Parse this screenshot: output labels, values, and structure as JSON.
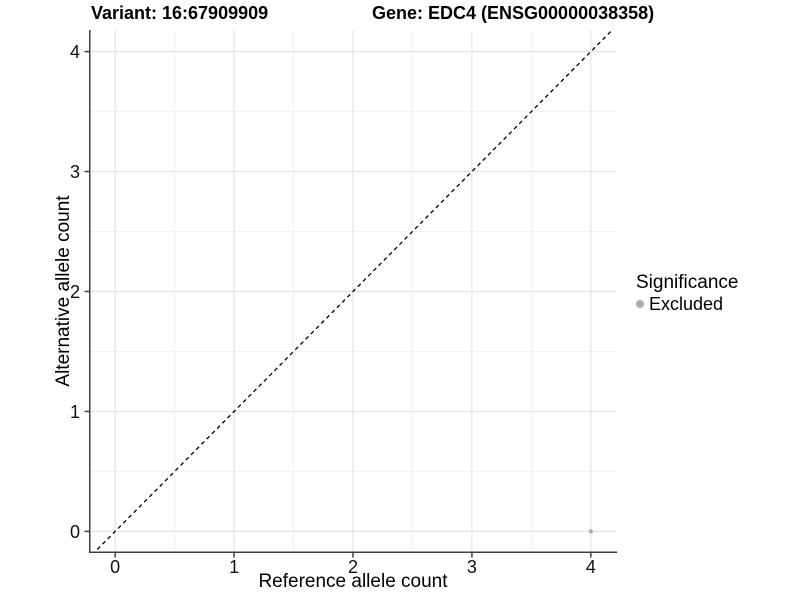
{
  "titles": {
    "variant": "Variant: 16:67909909",
    "gene": "Gene: EDC4 (ENSG00000038358)"
  },
  "chart_data": {
    "type": "scatter",
    "titles": [
      "Variant: 16:67909909",
      "Gene: EDC4 (ENSG00000038358)"
    ],
    "xlabel": "Reference allele count",
    "ylabel": "Alternative allele count",
    "xlim": [
      -0.22,
      4.22
    ],
    "ylim": [
      -0.18,
      4.18
    ],
    "x_ticks": [
      0,
      1,
      2,
      3,
      4
    ],
    "y_ticks": [
      0,
      1,
      2,
      3,
      4
    ],
    "x_minor_ticks": [
      0.5,
      1.5,
      2.5,
      3.5
    ],
    "y_minor_ticks": [
      0.5,
      1.5,
      2.5,
      3.5
    ],
    "grid": {
      "major": true,
      "minor": true,
      "major_color": "#e4e4e4",
      "minor_color": "#f1f1f1"
    },
    "reference_line": {
      "type": "identity",
      "slope": 1,
      "intercept": 0,
      "style": "dashed",
      "color": "#000000"
    },
    "series": [
      {
        "name": "Excluded",
        "color": "#ababab",
        "marker": "circle",
        "points": [
          {
            "x": 4,
            "y": 0
          }
        ]
      }
    ],
    "legend": {
      "title": "Significance",
      "position": "right",
      "entries": [
        {
          "label": "Excluded",
          "color": "#ababab"
        }
      ]
    },
    "axis_color": "#3f3f3f",
    "tick_label_color": "#111111"
  }
}
